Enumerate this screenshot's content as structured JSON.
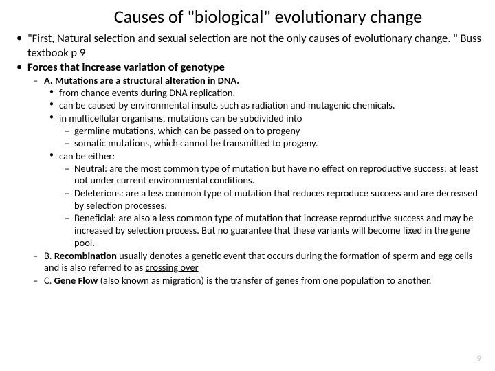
{
  "title": "Causes of \"biological\" evolutionary change",
  "b1_a": "\"First, Natural selection and sexual selection are not the only causes of evolutionary change. \" Buss textbook p 9",
  "b1_b": "Forces that increase variation of genotype",
  "a_lead": "A. Mutations are a structural alteration in DNA.",
  "a_1": "from chance events during DNA replication.",
  "a_2": "can be caused by environmental insults such as radiation and mutagenic chemicals.",
  "a_3": "in multicellular organisms, mutations can be subdivided into",
  "a_3_g": "germline mutations, which can be passed on to progeny",
  "a_3_s": "somatic mutations, which cannot be transmitted to progeny.",
  "a_4": "can be either:",
  "a_4_n": "Neutral: are the most common type of mutation but have no effect on reproductive success; at least not under current environmental conditions.",
  "a_4_d": "Deleterious: are a less common type of mutation that reduces reproduce success and are decreased by selection processes.",
  "a_4_b": "Beneficial: are also a less common type of mutation that increase reproductive success and may be increased by selection process. But no guarantee that these variants will become fixed in the gene pool.",
  "b_pre": "B. ",
  "b_bold": "Recombination",
  "b_mid": " usually denotes a genetic event that occurs during the formation of sperm and egg cells and is also referred to as ",
  "b_link": "crossing over",
  "c_pre": "C. ",
  "c_bold": "Gene Flow",
  "c_rest": " (also known as migration) is the transfer of genes from one population to another.",
  "pagenum": "9",
  "colors": {
    "bg": "#ffffff",
    "text": "#000000",
    "pagenum": "#bfbfbf"
  }
}
